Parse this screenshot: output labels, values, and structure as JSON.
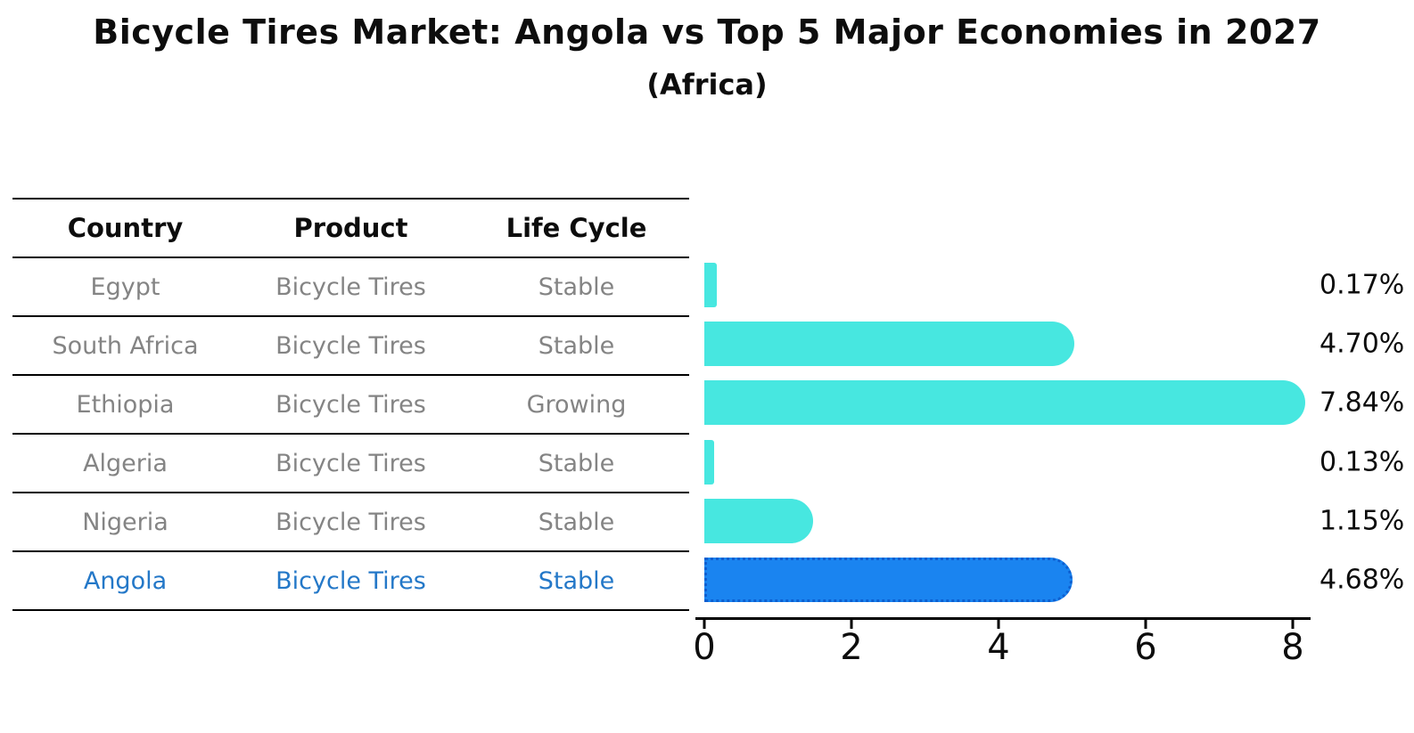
{
  "title": "Bicycle Tires Market: Angola vs Top 5 Major Economies in 2027",
  "subtitle": "(Africa)",
  "table": {
    "headers": [
      "Country",
      "Product",
      "Life Cycle"
    ],
    "rows": [
      {
        "country": "Egypt",
        "product": "Bicycle Tires",
        "life_cycle": "Stable",
        "highlighted": false
      },
      {
        "country": "South Africa",
        "product": "Bicycle Tires",
        "life_cycle": "Stable",
        "highlighted": false
      },
      {
        "country": "Ethiopia",
        "product": "Bicycle Tires",
        "life_cycle": "Growing",
        "highlighted": false
      },
      {
        "country": "Algeria",
        "product": "Bicycle Tires",
        "life_cycle": "Stable",
        "highlighted": false
      },
      {
        "country": "Nigeria",
        "product": "Bicycle Tires",
        "life_cycle": "Stable",
        "highlighted": false
      },
      {
        "country": "Angola",
        "product": "Bicycle Tires",
        "life_cycle": "Stable",
        "highlighted": true
      }
    ]
  },
  "chart_data": {
    "type": "bar",
    "orientation": "horizontal",
    "title": "Bicycle Tires Market: Angola vs Top 5 Major Economies in 2027",
    "subtitle": "(Africa)",
    "categories": [
      "Egypt",
      "South Africa",
      "Ethiopia",
      "Algeria",
      "Nigeria",
      "Angola"
    ],
    "values": [
      0.17,
      4.7,
      7.84,
      0.13,
      1.15,
      4.68
    ],
    "value_labels": [
      "0.17%",
      "4.70%",
      "7.84%",
      "0.13%",
      "1.15%",
      "4.68%"
    ],
    "x_ticks": [
      0,
      2,
      4,
      6,
      8
    ],
    "xlim": [
      0,
      8.3
    ],
    "grid": false,
    "legend": "none",
    "bar_color": "#47e7e0",
    "highlight_index": 5,
    "highlight_bar_color": "#1a84f0",
    "highlight_bar_border_color": "#0d5fd0",
    "highlight_text_color": "#2478c8",
    "table_text_color": "#848484",
    "header_text_color": "#0d0d0d",
    "axis_color": "#000000",
    "background_color": "#ffffff"
  }
}
